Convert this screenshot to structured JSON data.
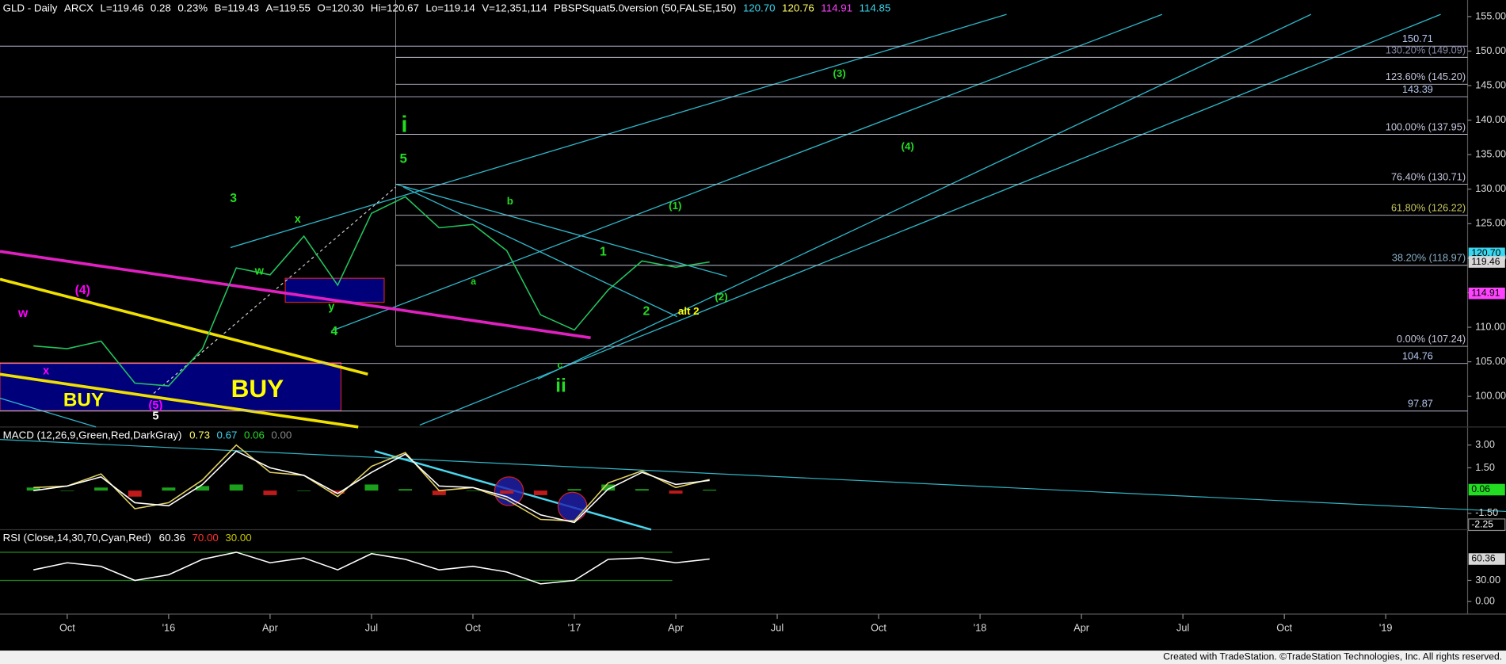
{
  "header": {
    "items": [
      {
        "text": "GLD - Daily",
        "color": "#ffffff"
      },
      {
        "text": "ARCX",
        "color": "#ffffff"
      },
      {
        "text": "L=119.46",
        "color": "#ffffff"
      },
      {
        "text": "0.28",
        "color": "#ffffff"
      },
      {
        "text": "0.23%",
        "color": "#ffffff"
      },
      {
        "text": "B=119.43",
        "color": "#ffffff"
      },
      {
        "text": "A=119.55",
        "color": "#ffffff"
      },
      {
        "text": "O=120.30",
        "color": "#ffffff"
      },
      {
        "text": "Hi=120.67",
        "color": "#ffffff"
      },
      {
        "text": "Lo=119.14",
        "color": "#ffffff"
      },
      {
        "text": "V=12,351,114",
        "color": "#ffffff"
      },
      {
        "text": "PBSPSquat5.0version (50,FALSE,150)",
        "color": "#ffffff"
      },
      {
        "text": "120.70",
        "color": "#3ad8f0"
      },
      {
        "text": "120.76",
        "color": "#ffff66"
      },
      {
        "text": "114.91",
        "color": "#ff44ff"
      },
      {
        "text": "114.85",
        "color": "#3ad8f0"
      }
    ]
  },
  "chart_data": [
    {
      "type": "line",
      "x": [
        "2015-08",
        "2015-09",
        "2015-10",
        "2015-11",
        "2015-12",
        "2016-01",
        "2016-02",
        "2016-03",
        "2016-04",
        "2016-05",
        "2016-06",
        "2016-07",
        "2016-08",
        "2016-09",
        "2016-10",
        "2016-11",
        "2016-12",
        "2017-01",
        "2017-02",
        "2017-03",
        "2017-04"
      ],
      "values": [
        107.3,
        106.9,
        108.0,
        101.9,
        101.5,
        106.9,
        118.6,
        117.6,
        123.2,
        116.1,
        126.5,
        128.9,
        124.4,
        124.9,
        121.1,
        111.8,
        109.6,
        115.4,
        119.6,
        118.7,
        119.46
      ],
      "color": "#22c55e",
      "ylim": [
        96.25,
        157.4
      ],
      "yticks": [
        {
          "value": 100,
          "label": "100.00"
        },
        {
          "value": 105,
          "label": "105.00"
        },
        {
          "value": 110,
          "label": "110.00"
        },
        {
          "value": 115,
          "label": "115.00"
        },
        {
          "value": 120,
          "label": "120.00"
        },
        {
          "value": 125,
          "label": "125.00"
        },
        {
          "value": 130,
          "label": "130.00"
        },
        {
          "value": 135,
          "label": "135.00"
        },
        {
          "value": 140,
          "label": "140.00"
        },
        {
          "value": 145,
          "label": "145.00"
        },
        {
          "value": 150,
          "label": "150.00"
        },
        {
          "value": 155,
          "label": "155.00"
        }
      ],
      "levels": [
        {
          "value": 150.71,
          "label": "150.71"
        },
        {
          "value": 143.39,
          "label": "143.39"
        },
        {
          "value": 104.76,
          "label": "104.76"
        },
        {
          "value": 97.87,
          "label": "97.87"
        }
      ],
      "fib_levels": [
        {
          "value": 149.09,
          "label": "130.20% (149.09)",
          "color": "#8a8aa8"
        },
        {
          "value": 145.2,
          "label": "123.60% (145.20)",
          "color": "#c8c8e0"
        },
        {
          "value": 137.95,
          "label": "100.00% (137.95)",
          "color": "#c8c8e0"
        },
        {
          "value": 130.71,
          "label": "76.40% (130.71)",
          "color": "#c8c8e0"
        },
        {
          "value": 126.22,
          "label": "61.80% (126.22)",
          "color": "#c8c860"
        },
        {
          "value": 118.97,
          "label": "38.20% (118.97)",
          "color": "#8ab0c8"
        },
        {
          "value": 107.24,
          "label": "0.00% (107.24)",
          "color": "#c8c8e0"
        }
      ],
      "price_tags": [
        {
          "value": 120.7,
          "label": "120.70",
          "color": "#3ad8f0"
        },
        {
          "value": 119.46,
          "label": "119.46",
          "color": "#d8d8d8"
        },
        {
          "value": 114.91,
          "label": "114.91",
          "color": "#ff44ff"
        }
      ],
      "annotations": [
        {
          "text": "w",
          "color": "#ff00ff"
        },
        {
          "text": "x",
          "color": "#ff00ff"
        },
        {
          "text": "(4)",
          "color": "#ff00ff"
        },
        {
          "text": "(5)",
          "color": "#ff00ff"
        },
        {
          "text": "5",
          "color": "#ffffff"
        },
        {
          "text": "3",
          "color": "#22dd22"
        },
        {
          "text": "w",
          "color": "#22dd22"
        },
        {
          "text": "x",
          "color": "#22dd22"
        },
        {
          "text": "y",
          "color": "#22dd22"
        },
        {
          "text": "4",
          "color": "#22dd22"
        },
        {
          "text": "i",
          "color": "#22dd22"
        },
        {
          "text": "5",
          "color": "#22dd22"
        },
        {
          "text": "b",
          "color": "#22dd22"
        },
        {
          "text": "a",
          "color": "#22dd22"
        },
        {
          "text": "c",
          "color": "#22dd22"
        },
        {
          "text": "ii",
          "color": "#22dd22"
        },
        {
          "text": "1",
          "color": "#22dd22"
        },
        {
          "text": "2",
          "color": "#22dd22"
        },
        {
          "text": "(1)",
          "color": "#22dd22"
        },
        {
          "text": "(2)",
          "color": "#22dd22"
        },
        {
          "text": "alt 2",
          "color": "#ffff00"
        },
        {
          "text": "(3)",
          "color": "#22dd22"
        },
        {
          "text": "(4)",
          "color": "#22dd22"
        },
        {
          "text": "BUY",
          "color": "#ffff00"
        },
        {
          "text": "BUY",
          "color": "#ffff00"
        }
      ]
    },
    {
      "type": "line",
      "title": "MACD (12,26,9,Green,Red,DarkGray)",
      "header_values": [
        {
          "text": "0.73",
          "color": "#ffff66"
        },
        {
          "text": "0.67",
          "color": "#3ad8f0"
        },
        {
          "text": "0.06",
          "color": "#22dd22"
        },
        {
          "text": "0.00",
          "color": "#888888"
        }
      ],
      "x": [
        "2015-08",
        "2015-09",
        "2015-10",
        "2015-11",
        "2015-12",
        "2016-01",
        "2016-02",
        "2016-03",
        "2016-04",
        "2016-05",
        "2016-06",
        "2016-07",
        "2016-08",
        "2016-09",
        "2016-10",
        "2016-11",
        "2016-12",
        "2017-01",
        "2017-02",
        "2017-03",
        "2017-04"
      ],
      "series": [
        {
          "color": "#e0d060",
          "values": [
            0.2,
            0.3,
            1.1,
            -1.2,
            -0.8,
            0.7,
            3.0,
            1.2,
            1.0,
            -0.4,
            1.6,
            2.5,
            0.0,
            0.2,
            -0.6,
            -1.9,
            -2.0,
            0.5,
            1.3,
            0.2,
            0.73
          ]
        },
        {
          "color": "#ffffff",
          "values": [
            0.0,
            0.3,
            0.9,
            -0.8,
            -1.0,
            0.4,
            2.6,
            1.5,
            1.0,
            -0.2,
            1.2,
            2.4,
            0.3,
            0.2,
            -0.4,
            -1.6,
            -2.1,
            0.1,
            1.2,
            0.4,
            0.67
          ]
        }
      ],
      "histogram": [
        0.2,
        0.0,
        0.2,
        -0.4,
        0.2,
        0.3,
        0.4,
        -0.3,
        0.0,
        -0.2,
        0.4,
        0.1,
        -0.3,
        0.0,
        -0.2,
        -0.3,
        0.1,
        0.4,
        0.1,
        -0.2,
        0.06
      ],
      "ylim": [
        -2.45,
        4.0
      ],
      "yticks": [
        {
          "value": 3,
          "label": "3.00"
        },
        {
          "value": 1.5,
          "label": "1.50"
        },
        {
          "value": -1.5,
          "label": "-1.50"
        }
      ],
      "value_tags": [
        {
          "value": 0.06,
          "label": "0.06",
          "color": "#22dd22"
        },
        {
          "value": -2.25,
          "label": "-2.25",
          "color": "#000000"
        }
      ]
    },
    {
      "type": "line",
      "title": "RSI (Close,14,30,70,Cyan,Red)",
      "header_values": [
        {
          "text": "60.36",
          "color": "#ffffff"
        },
        {
          "text": "70.00",
          "color": "#ff3030"
        },
        {
          "text": "30.00",
          "color": "#c8c800"
        }
      ],
      "x": [
        "2015-08",
        "2015-09",
        "2015-10",
        "2015-11",
        "2015-12",
        "2016-01",
        "2016-02",
        "2016-03",
        "2016-04",
        "2016-05",
        "2016-06",
        "2016-07",
        "2016-08",
        "2016-09",
        "2016-10",
        "2016-11",
        "2016-12",
        "2017-01",
        "2017-02",
        "2017-03",
        "2017-04"
      ],
      "values": [
        45,
        55,
        50,
        30,
        38,
        60,
        70,
        55,
        62,
        45,
        68,
        60,
        45,
        50,
        42,
        25,
        30,
        60,
        62,
        55,
        60.36
      ],
      "color": "#ffffff",
      "bands": [
        70,
        30
      ],
      "ylim": [
        -7,
        98
      ],
      "yticks": [
        {
          "value": 30,
          "label": "30.00"
        },
        {
          "value": 0,
          "label": "0.00"
        }
      ],
      "value_tags": [
        {
          "value": 60.36,
          "label": "60.36",
          "color": "#d8d8d8"
        }
      ]
    }
  ],
  "x_axis": {
    "ticks": [
      "Oct",
      "'16",
      "Apr",
      "Jul",
      "Oct",
      "'17",
      "Apr",
      "Jul",
      "Oct",
      "'18",
      "Apr",
      "Jul",
      "Oct",
      "'19"
    ]
  },
  "footer": "Created with TradeStation. ©TradeStation Technologies, Inc. All rights reserved."
}
